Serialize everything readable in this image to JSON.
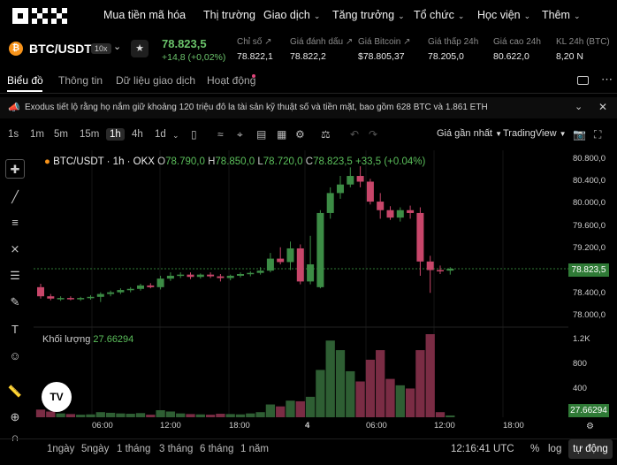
{
  "nav": {
    "items": [
      "Mua tiền mã hóa",
      "Thị trường",
      "Giao dịch",
      "Tăng trưởng",
      "Tổ chức",
      "Học viện",
      "Thêm"
    ]
  },
  "ticker": {
    "coin_symbol": "₿",
    "pair": "BTC/USDT",
    "leverage": "10x",
    "last_price": "78.823,5",
    "change": "+14,8 (+0,02%)",
    "stats": [
      {
        "label": "Chỉ số",
        "value": "78.822,1"
      },
      {
        "label": "Giá đánh dấu",
        "value": "78.822,2"
      },
      {
        "label": "Giá Bitcoin",
        "value": "$78.805,37"
      },
      {
        "label": "Giá thấp 24h",
        "value": "78.205,0"
      },
      {
        "label": "Giá cao 24h",
        "value": "80.622,0"
      },
      {
        "label": "KL 24h (BTC)",
        "value": "8,20 N"
      }
    ]
  },
  "tabs": [
    "Biểu đồ",
    "Thông tin",
    "Dữ liệu giao dịch",
    "Hoạt động"
  ],
  "announcement": "Exodus tiết lộ rằng họ nắm giữ khoảng 120 triệu đô la tài sản kỹ thuật số và tiền mặt, bao gồm 628 BTC và 1.861 ETH",
  "toolbar": {
    "timeframes": [
      "1s",
      "1m",
      "5m",
      "15m",
      "1h",
      "4h",
      "1d"
    ],
    "active_timeframe": "1h",
    "price_type": "Giá gần nhất",
    "chart_type": "TradingView"
  },
  "legend": {
    "title": "BTC/USDT · 1h · OKX",
    "o_label": "O",
    "o": "78.790,0",
    "h_label": "H",
    "h": "78.850,0",
    "l_label": "L",
    "l": "78.720,0",
    "c_label": "C",
    "c": "78.823,5",
    "change": "+33,5 (+0.04%)",
    "volume_label": "Khối lượng",
    "volume": "27.66294"
  },
  "axes": {
    "price_ticks": [
      "80.800,0",
      "80.400,0",
      "80.000,0",
      "79.600,0",
      "79.200,0",
      "78.400,0",
      "78.000,0"
    ],
    "current_price": "78.823,5",
    "volume_ticks": [
      "1.2K",
      "800",
      "400"
    ],
    "current_volume": "27.66294",
    "time_ticks": [
      "06:00",
      "12:00",
      "18:00",
      "4",
      "06:00",
      "12:00",
      "18:00"
    ]
  },
  "bottom": {
    "ranges": [
      "1ngày",
      "5ngày",
      "1 tháng",
      "3 tháng",
      "6 tháng",
      "1 năm"
    ],
    "clock": "12:16:41 UTC",
    "pct": "%",
    "log": "log",
    "auto": "tự động"
  },
  "colors": {
    "up": "#3c8c45",
    "down": "#c8466a",
    "bg": "#000000"
  },
  "chart_data": {
    "type": "candlestick",
    "price_range": [
      77800,
      80900
    ],
    "volume_range": [
      0,
      1300
    ],
    "candles": [
      {
        "o": 78500,
        "h": 78560,
        "l": 78300,
        "c": 78340,
        "v": 120
      },
      {
        "o": 78340,
        "h": 78380,
        "l": 78270,
        "c": 78300,
        "v": 90
      },
      {
        "o": 78300,
        "h": 78340,
        "l": 78260,
        "c": 78310,
        "v": 60
      },
      {
        "o": 78310,
        "h": 78340,
        "l": 78270,
        "c": 78290,
        "v": 50
      },
      {
        "o": 78290,
        "h": 78330,
        "l": 78260,
        "c": 78310,
        "v": 40
      },
      {
        "o": 78310,
        "h": 78360,
        "l": 78280,
        "c": 78330,
        "v": 45
      },
      {
        "o": 78330,
        "h": 78410,
        "l": 78240,
        "c": 78380,
        "v": 80
      },
      {
        "o": 78380,
        "h": 78440,
        "l": 78340,
        "c": 78410,
        "v": 70
      },
      {
        "o": 78410,
        "h": 78480,
        "l": 78380,
        "c": 78450,
        "v": 60
      },
      {
        "o": 78450,
        "h": 78500,
        "l": 78410,
        "c": 78470,
        "v": 55
      },
      {
        "o": 78470,
        "h": 78560,
        "l": 78440,
        "c": 78530,
        "v": 65
      },
      {
        "o": 78530,
        "h": 78570,
        "l": 78480,
        "c": 78500,
        "v": 40
      },
      {
        "o": 78500,
        "h": 78700,
        "l": 78460,
        "c": 78650,
        "v": 110
      },
      {
        "o": 78650,
        "h": 78760,
        "l": 78610,
        "c": 78700,
        "v": 90
      },
      {
        "o": 78700,
        "h": 78760,
        "l": 78660,
        "c": 78720,
        "v": 60
      },
      {
        "o": 78720,
        "h": 78760,
        "l": 78640,
        "c": 78680,
        "v": 50
      },
      {
        "o": 78680,
        "h": 78740,
        "l": 78650,
        "c": 78720,
        "v": 45
      },
      {
        "o": 78720,
        "h": 78760,
        "l": 78660,
        "c": 78690,
        "v": 40
      },
      {
        "o": 78690,
        "h": 78730,
        "l": 78600,
        "c": 78660,
        "v": 55
      },
      {
        "o": 78660,
        "h": 78720,
        "l": 78620,
        "c": 78700,
        "v": 50
      },
      {
        "o": 78700,
        "h": 78760,
        "l": 78670,
        "c": 78730,
        "v": 45
      },
      {
        "o": 78730,
        "h": 78780,
        "l": 78690,
        "c": 78750,
        "v": 60
      },
      {
        "o": 78750,
        "h": 78850,
        "l": 78720,
        "c": 78790,
        "v": 80
      },
      {
        "o": 78790,
        "h": 79100,
        "l": 78760,
        "c": 79000,
        "v": 200
      },
      {
        "o": 79000,
        "h": 79200,
        "l": 78900,
        "c": 78940,
        "v": 170
      },
      {
        "o": 78940,
        "h": 79300,
        "l": 78800,
        "c": 79180,
        "v": 260
      },
      {
        "o": 79180,
        "h": 79250,
        "l": 78550,
        "c": 78600,
        "v": 250
      },
      {
        "o": 78600,
        "h": 79400,
        "l": 78550,
        "c": 78900,
        "v": 320
      },
      {
        "o": 78500,
        "h": 79850,
        "l": 78480,
        "c": 79800,
        "v": 740
      },
      {
        "o": 79800,
        "h": 80250,
        "l": 79700,
        "c": 80150,
        "v": 1200
      },
      {
        "o": 80150,
        "h": 80450,
        "l": 80050,
        "c": 80300,
        "v": 1050
      },
      {
        "o": 80300,
        "h": 80600,
        "l": 80250,
        "c": 80450,
        "v": 720
      },
      {
        "o": 80450,
        "h": 80620,
        "l": 80250,
        "c": 80350,
        "v": 560
      },
      {
        "o": 80350,
        "h": 80400,
        "l": 79950,
        "c": 80000,
        "v": 900
      },
      {
        "o": 80000,
        "h": 80150,
        "l": 79700,
        "c": 79850,
        "v": 1050
      },
      {
        "o": 79850,
        "h": 79920,
        "l": 79680,
        "c": 79720,
        "v": 600
      },
      {
        "o": 79720,
        "h": 79900,
        "l": 79650,
        "c": 79850,
        "v": 500
      },
      {
        "o": 79850,
        "h": 79930,
        "l": 79700,
        "c": 79800,
        "v": 450
      },
      {
        "o": 79800,
        "h": 79900,
        "l": 78700,
        "c": 78950,
        "v": 1050
      },
      {
        "o": 78950,
        "h": 79050,
        "l": 78400,
        "c": 78800,
        "v": 1300
      },
      {
        "o": 78800,
        "h": 78880,
        "l": 78730,
        "c": 78780,
        "v": 80
      },
      {
        "o": 78790,
        "h": 78850,
        "l": 78720,
        "c": 78823,
        "v": 28
      }
    ]
  }
}
